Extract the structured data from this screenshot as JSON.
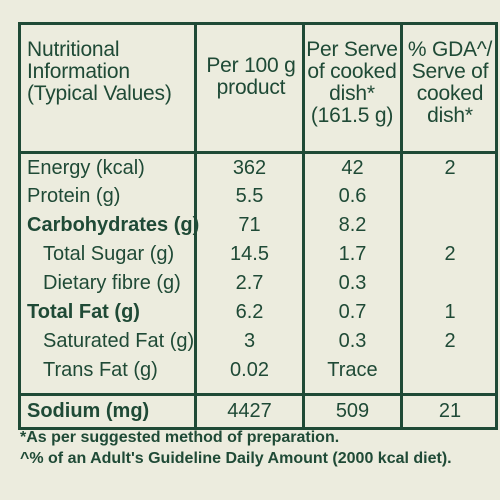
{
  "header": {
    "col1": "Nutritional Information (Typical Values)",
    "col2": "Per 100 g product",
    "col3": "Per Serve of cooked dish* (161.5 g)",
    "col4": "% GDA^/ Serve of cooked dish*"
  },
  "rows": [
    {
      "label": "Energy (kcal)",
      "bold": false,
      "indent": false,
      "per100": "362",
      "perServe": "42",
      "gda": "2"
    },
    {
      "label": "Protein (g)",
      "bold": false,
      "indent": false,
      "per100": "5.5",
      "perServe": "0.6",
      "gda": ""
    },
    {
      "label": "Carbohydrates (g)",
      "bold": true,
      "indent": false,
      "per100": "71",
      "perServe": "8.2",
      "gda": ""
    },
    {
      "label": "Total Sugar (g)",
      "bold": false,
      "indent": true,
      "per100": "14.5",
      "perServe": "1.7",
      "gda": "2"
    },
    {
      "label": "Dietary fibre (g)",
      "bold": false,
      "indent": true,
      "per100": "2.7",
      "perServe": "0.3",
      "gda": ""
    },
    {
      "label": "Total Fat (g)",
      "bold": true,
      "indent": false,
      "per100": "6.2",
      "perServe": "0.7",
      "gda": "1"
    },
    {
      "label": "Saturated Fat (g)",
      "bold": false,
      "indent": true,
      "per100": "3",
      "perServe": "0.3",
      "gda": "2"
    },
    {
      "label": "Trans Fat (g)",
      "bold": false,
      "indent": true,
      "per100": "0.02",
      "perServe": "Trace",
      "gda": ""
    },
    {
      "label": "Sodium (mg)",
      "bold": true,
      "indent": false,
      "per100": "4427",
      "perServe": "509",
      "gda": "21"
    }
  ],
  "notes": {
    "line1": "*As per suggested method of preparation.",
    "line2": "^% of an Adult's Guideline Daily Amount (2000 kcal diet)."
  },
  "colors": {
    "text": "#1f4a36",
    "background": "#ececde"
  }
}
